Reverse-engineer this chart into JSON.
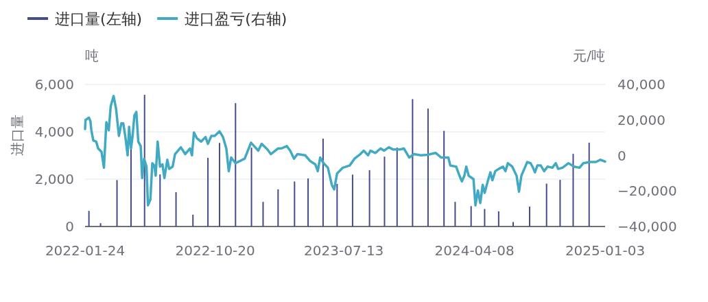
{
  "chart_data": {
    "type": "bar",
    "ylabel": "进口量",
    "y2label": "元/吨",
    "annotations": [
      "吨"
    ],
    "legend": "top left",
    "grid": "y",
    "xlim": [
      "2022-01-24",
      "2025-01-03"
    ],
    "xticks": [
      {
        "value": "2022-01-24",
        "label": "2022-01-24"
      },
      {
        "value": "2022-10-20",
        "label": "2022-10-20"
      },
      {
        "value": "2023-07-13",
        "label": "2023-07-13"
      },
      {
        "value": "2024-04-08",
        "label": "2024-04-08"
      },
      {
        "value": "2025-01-03",
        "label": "2025-01-03"
      }
    ],
    "ylim": [
      0,
      6000
    ],
    "yticks": [
      {
        "value": 0,
        "label": "0"
      },
      {
        "value": 2000,
        "label": "2,000"
      },
      {
        "value": 4000,
        "label": "4,000"
      },
      {
        "value": 6000,
        "label": "6,000"
      }
    ],
    "y2lim": [
      -40000,
      40000
    ],
    "y2ticks": [
      {
        "value": -40000,
        "label": "−40,000"
      },
      {
        "value": -20000,
        "label": "−20,000"
      },
      {
        "value": 0,
        "label": "0"
      },
      {
        "value": 20000,
        "label": "20,000"
      },
      {
        "value": 40000,
        "label": "40,000"
      }
    ],
    "series": [
      {
        "name": "进口量(左轴)",
        "color": "#464b8c",
        "x": [
          "2022-02-01",
          "2022-02-25",
          "2022-03-31",
          "2022-04-29",
          "2022-05-27",
          "2022-06-28",
          "2022-07-31",
          "2022-09-04",
          "2022-10-05",
          "2022-10-29",
          "2022-12-01",
          "2023-01-03",
          "2023-01-27",
          "2023-02-27",
          "2023-04-02",
          "2023-04-30",
          "2023-05-31",
          "2023-06-29",
          "2023-07-31",
          "2023-09-04",
          "2023-10-05",
          "2023-10-31",
          "2023-12-02",
          "2024-01-03",
          "2024-02-05",
          "2024-02-28",
          "2024-04-01",
          "2024-04-29",
          "2024-05-28",
          "2024-06-27",
          "2024-07-31",
          "2024-09-04",
          "2024-10-02",
          "2024-10-29",
          "2024-12-01"
        ],
        "values": [
          660,
          140,
          1960,
          3300,
          5560,
          2200,
          1450,
          500,
          2900,
          3530,
          5210,
          3330,
          1040,
          1570,
          1900,
          2030,
          3710,
          1800,
          2190,
          2380,
          2950,
          3330,
          5380,
          4980,
          4040,
          1040,
          860,
          740,
          640,
          190,
          840,
          1810,
          1970,
          3070,
          3540
        ]
      },
      {
        "name": "进口盈亏(右轴)",
        "type": "line",
        "axis": "y2",
        "color": "#41a9c2",
        "x": [
          "2022-01-24",
          "2022-01-25",
          "2022-02-01",
          "2022-02-04",
          "2022-02-06",
          "2022-02-10",
          "2022-02-16",
          "2022-02-20",
          "2022-02-27",
          "2022-03-04",
          "2022-03-07",
          "2022-03-09",
          "2022-03-14",
          "2022-03-18",
          "2022-03-24",
          "2022-03-29",
          "2022-04-04",
          "2022-04-09",
          "2022-04-13",
          "2022-04-17",
          "2022-04-22",
          "2022-04-25",
          "2022-04-29",
          "2022-05-02",
          "2022-05-06",
          "2022-05-10",
          "2022-05-14",
          "2022-05-19",
          "2022-05-22",
          "2022-05-26",
          "2022-05-31",
          "2022-06-03",
          "2022-06-08",
          "2022-06-12",
          "2022-06-16",
          "2022-06-19",
          "2022-06-23",
          "2022-06-28",
          "2022-07-03",
          "2022-07-07",
          "2022-07-13",
          "2022-07-17",
          "2022-07-24",
          "2022-07-29",
          "2022-08-10",
          "2022-08-19",
          "2022-08-29",
          "2022-09-02",
          "2022-09-06",
          "2022-09-12",
          "2022-09-21",
          "2022-09-30",
          "2022-10-05",
          "2022-10-12",
          "2022-10-19",
          "2022-10-29",
          "2022-11-05",
          "2022-11-12",
          "2022-11-17",
          "2022-11-22",
          "2022-12-01",
          "2022-12-20",
          "2023-01-02",
          "2023-01-17",
          "2023-01-24",
          "2023-02-05",
          "2023-02-12",
          "2023-02-27",
          "2023-03-06",
          "2023-03-17",
          "2023-03-24",
          "2023-04-01",
          "2023-04-08",
          "2023-04-24",
          "2023-05-04",
          "2023-05-15",
          "2023-05-20",
          "2023-05-25",
          "2023-06-01",
          "2023-06-10",
          "2023-06-18",
          "2023-06-23",
          "2023-06-29",
          "2023-07-11",
          "2023-07-25",
          "2023-08-04",
          "2023-08-16",
          "2023-08-23",
          "2023-09-01",
          "2023-09-06",
          "2023-09-16",
          "2023-09-27",
          "2023-10-04",
          "2023-10-14",
          "2023-10-23",
          "2023-11-06",
          "2023-11-14",
          "2023-11-25",
          "2023-12-05",
          "2023-12-19",
          "2024-01-02",
          "2024-01-19",
          "2024-01-30",
          "2024-02-11",
          "2024-02-14",
          "2024-02-18",
          "2024-03-01",
          "2024-03-08",
          "2024-03-13",
          "2024-03-18",
          "2024-03-22",
          "2024-03-27",
          "2024-04-06",
          "2024-04-10",
          "2024-04-15",
          "2024-04-20",
          "2024-04-25",
          "2024-04-29",
          "2024-05-06",
          "2024-05-11",
          "2024-05-15",
          "2024-05-21",
          "2024-05-28",
          "2024-06-06",
          "2024-06-11",
          "2024-06-16",
          "2024-06-25",
          "2024-07-04",
          "2024-07-09",
          "2024-07-14",
          "2024-07-26",
          "2024-08-02",
          "2024-08-07",
          "2024-08-11",
          "2024-08-16",
          "2024-08-23",
          "2024-08-30",
          "2024-09-06",
          "2024-09-16",
          "2024-09-23",
          "2024-09-28",
          "2024-10-07",
          "2024-10-19",
          "2024-10-31",
          "2024-11-11",
          "2024-11-19",
          "2024-12-03",
          "2024-12-15",
          "2024-12-24",
          "2025-01-03"
        ],
        "values": [
          14900,
          20000,
          21300,
          19350,
          14200,
          8460,
          7800,
          3960,
          2040,
          -6900,
          8460,
          18700,
          14200,
          27700,
          33500,
          26400,
          11000,
          18080,
          18080,
          11000,
          100,
          16150,
          3960,
          10400,
          22600,
          24500,
          7800,
          5270,
          -12700,
          -1800,
          -6270,
          -28080,
          -24900,
          -4350,
          -5650,
          -11400,
          7800,
          -6270,
          -5000,
          -12700,
          -2420,
          -7570,
          -6270,
          770,
          4600,
          770,
          3960,
          100,
          12960,
          9730,
          7800,
          10400,
          6540,
          11000,
          11000,
          13570,
          10400,
          3960,
          -8850,
          -1150,
          -4350,
          -1800,
          7190,
          2690,
          6540,
          3350,
          770,
          3960,
          3960,
          5270,
          2690,
          -1800,
          770,
          100,
          -3080,
          -5000,
          -8850,
          -1150,
          -4350,
          -6900,
          -16500,
          -19100,
          -10100,
          -6900,
          -5650,
          -1800,
          770,
          2690,
          100,
          2690,
          1420,
          3960,
          2690,
          4600,
          3350,
          3350,
          3960,
          -1150,
          770,
          100,
          380,
          1420,
          -1150,
          -1150,
          -1150,
          -5650,
          -6270,
          -11400,
          -14600,
          -11400,
          -6270,
          -11400,
          -13350,
          -28080,
          -19730,
          -26800,
          -16500,
          -21040,
          -13960,
          -9500,
          -13960,
          -8850,
          -7570,
          -6270,
          -8850,
          -4350,
          -6270,
          -11400,
          -20380,
          -11400,
          -3700,
          -4350,
          -6900,
          -9500,
          -5650,
          -5650,
          -8850,
          -6270,
          -6900,
          -4350,
          -7570,
          -6900,
          -4350,
          -6270,
          -6900,
          -4350,
          -3700,
          -3700,
          -2420,
          -3460
        ]
      }
    ]
  }
}
